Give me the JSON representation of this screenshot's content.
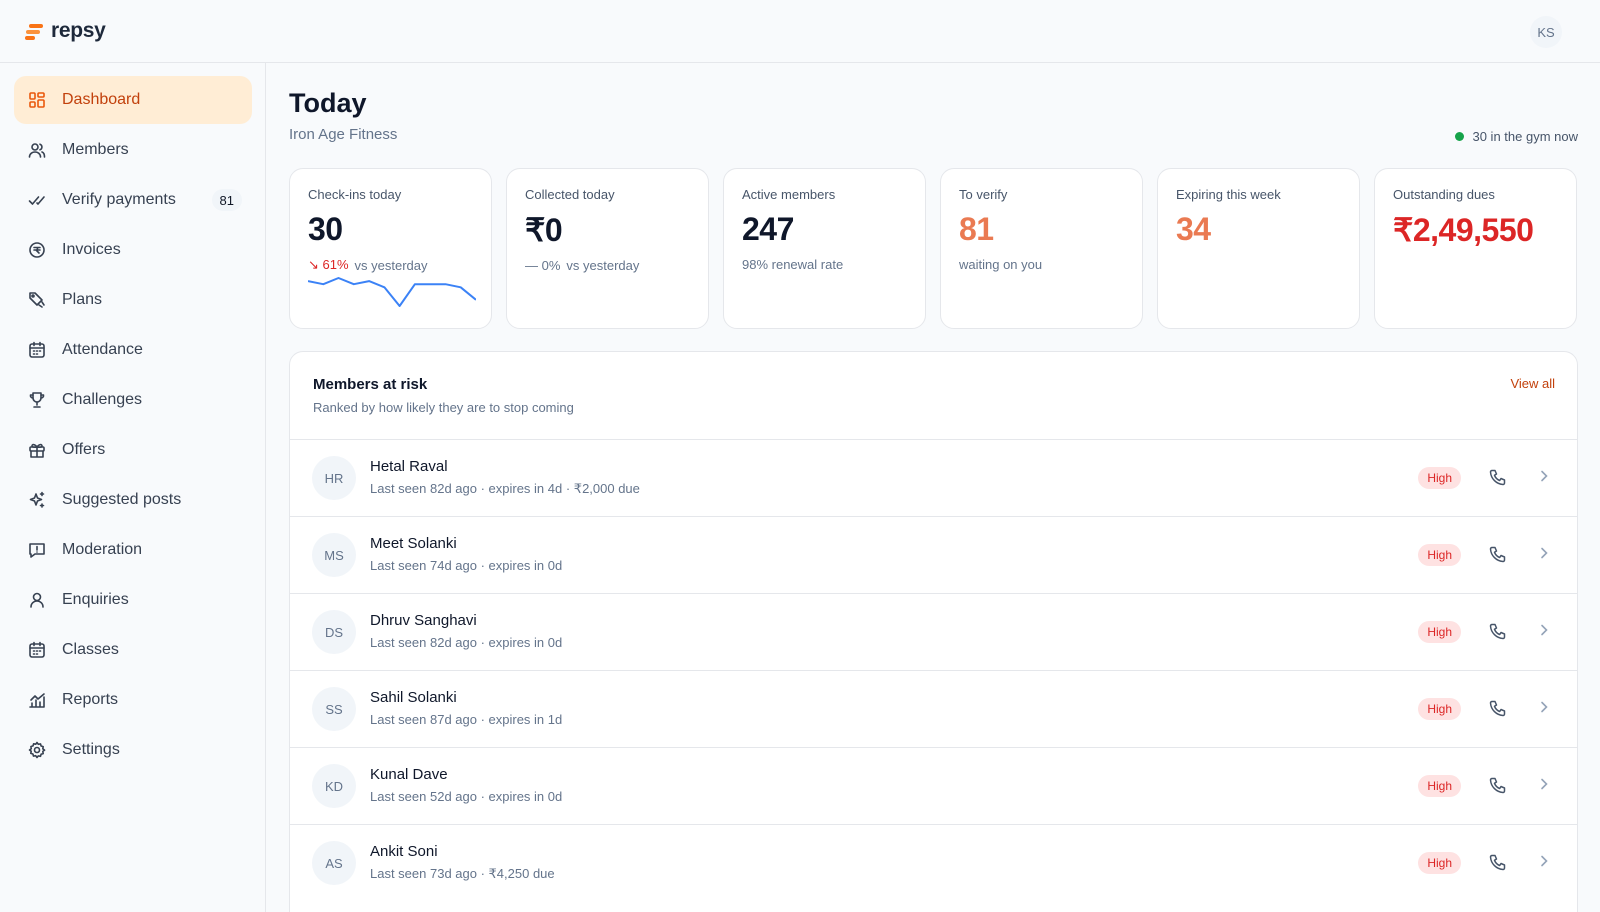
{
  "app": {
    "brand": "repsy",
    "user_initials": "KS"
  },
  "sidebar": {
    "items": [
      {
        "label": "Dashboard",
        "icon": "dashboard-icon",
        "active": true
      },
      {
        "label": "Members",
        "icon": "members-icon"
      },
      {
        "label": "Verify payments",
        "icon": "check-double-icon",
        "badge": "81"
      },
      {
        "label": "Invoices",
        "icon": "invoice-icon"
      },
      {
        "label": "Plans",
        "icon": "plans-icon"
      },
      {
        "label": "Attendance",
        "icon": "calendar-icon"
      },
      {
        "label": "Challenges",
        "icon": "trophy-icon"
      },
      {
        "label": "Offers",
        "icon": "gift-icon"
      },
      {
        "label": "Suggested posts",
        "icon": "sparkles-icon"
      },
      {
        "label": "Moderation",
        "icon": "message-flag-icon"
      },
      {
        "label": "Enquiries",
        "icon": "user-icon"
      },
      {
        "label": "Classes",
        "icon": "calendar-icon"
      },
      {
        "label": "Reports",
        "icon": "chart-icon"
      },
      {
        "label": "Settings",
        "icon": "gear-icon"
      }
    ]
  },
  "header": {
    "title": "Today",
    "subtitle": "Iron Age Fitness",
    "live_status": "30 in the gym now"
  },
  "stats": [
    {
      "label": "Checkins",
      "text_label": "Check-ins today",
      "value": "30",
      "change": "↘ 61%",
      "change_suffix": "vs yesterday"
    },
    {
      "label": "Collected today",
      "value": "₹0",
      "change": "— 0%",
      "change_suffix": "vs yesterday"
    },
    {
      "label": "Active members",
      "value": "247",
      "sub": "98% renewal rate"
    },
    {
      "label": "To verify",
      "value": "81",
      "sub": "waiting on you"
    },
    {
      "label": "Expiring this week",
      "value": "34"
    },
    {
      "label": "Outstanding dues",
      "value": "₹2,49,550"
    }
  ],
  "checkins_sparkline": [
    14,
    13,
    15,
    13,
    14,
    12,
    6,
    13,
    13,
    13,
    12,
    8
  ],
  "risk_panel": {
    "title": "Members at risk",
    "subtitle": "Ranked by how likely they are to stop coming",
    "view_all": "View all",
    "members": [
      {
        "initials": "HR",
        "name": "Hetal Raval",
        "meta": "Last seen 82d ago · expires in 4d · ₹2,000 due",
        "risk": "High"
      },
      {
        "initials": "MS",
        "name": "Meet Solanki",
        "meta": "Last seen 74d ago · expires in 0d",
        "risk": "High"
      },
      {
        "initials": "DS",
        "name": "Dhruv Sanghavi",
        "meta": "Last seen 82d ago · expires in 0d",
        "risk": "High"
      },
      {
        "initials": "SS",
        "name": "Sahil Solanki",
        "meta": "Last seen 87d ago · expires in 1d",
        "risk": "High"
      },
      {
        "initials": "KD",
        "name": "Kunal Dave",
        "meta": "Last seen 52d ago · expires in 0d",
        "risk": "High"
      },
      {
        "initials": "AS",
        "name": "Ankit Soni",
        "meta": "Last seen 73d ago · ₹4,250 due",
        "risk": "High"
      }
    ]
  },
  "colors": {
    "accent": "#ea580c",
    "accent_bg": "#ffedd5",
    "danger": "#dc2626",
    "success": "#16a34a"
  }
}
